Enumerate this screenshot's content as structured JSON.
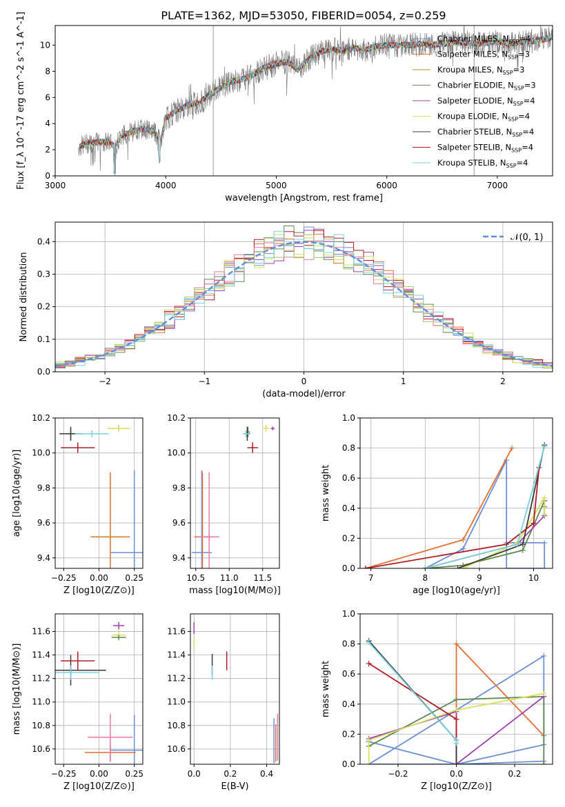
{
  "figure_title": "PLATE=1362, MJD=53050, FIBERID=0054, z=0.259",
  "colors": {
    "Chabrier MILES": "#6a8fd8",
    "Salpeter MILES": "#e36f33",
    "Kroupa MILES": "#c8882a",
    "Chabrier ELODIE": "#5b8a4f",
    "Salpeter ELODIE": "#a040b0",
    "Kroupa ELODIE": "#d6e05a",
    "Chabrier STELIB": "#3a3a3a",
    "Salpeter STELIB": "#b01c20",
    "Kroupa STELIB": "#7ad0dc",
    "data": "#7f7f7f",
    "normal": "#5b8fd8",
    "pink": "#e87aa8",
    "green2": "#9ec86a"
  },
  "chart_data": [
    {
      "id": "spectrum",
      "type": "line",
      "title": "PLATE=1362, MJD=53050, FIBERID=0054, z=0.259",
      "xlabel": "wavelength [Angstrom, rest frame]",
      "ylabel": "Flux [f_λ 10^-17 erg cm^-2 s^-1 A^-1]",
      "xlim": [
        3000,
        7500
      ],
      "ylim": [
        0,
        11.5
      ],
      "xticks": [
        "3000",
        "4000",
        "5000",
        "6000",
        "7000"
      ],
      "yticks": [
        "0",
        "2",
        "4",
        "6",
        "8",
        "10"
      ],
      "legend": [
        "Chabrier MILES, N_SSP=4",
        "Salpeter MILES, N_SSP=3",
        "Kroupa MILES, N_SSP=3",
        "Chabrier ELODIE, N_SSP=3",
        "Salpeter ELODIE, N_SSP=4",
        "Kroupa ELODIE, N_SSP=4",
        "Chabrier STELIB, N_SSP=4",
        "Salpeter STELIB, N_SSP=4",
        "Kroupa STELIB, N_SSP=4"
      ],
      "legend_placement": "upper right",
      "grid": false,
      "continuum": [
        [
          3210,
          2.2
        ],
        [
          3300,
          2.5
        ],
        [
          3400,
          2.6
        ],
        [
          3500,
          2.6
        ],
        [
          3540,
          2.2
        ],
        [
          3600,
          3.1
        ],
        [
          3700,
          3.4
        ],
        [
          3800,
          3.6
        ],
        [
          3900,
          3.4
        ],
        [
          3950,
          2.6
        ],
        [
          4000,
          4.4
        ],
        [
          4100,
          5.0
        ],
        [
          4200,
          5.4
        ],
        [
          4300,
          5.6
        ],
        [
          4400,
          6.2
        ],
        [
          4500,
          6.8
        ],
        [
          4600,
          7.2
        ],
        [
          4700,
          7.4
        ],
        [
          4800,
          7.8
        ],
        [
          4900,
          8.3
        ],
        [
          5000,
          8.6
        ],
        [
          5100,
          8.7
        ],
        [
          5200,
          8.1
        ],
        [
          5300,
          9.0
        ],
        [
          5400,
          9.5
        ],
        [
          5500,
          9.7
        ],
        [
          5600,
          9.6
        ],
        [
          5700,
          9.8
        ],
        [
          5800,
          9.6
        ],
        [
          5900,
          9.9
        ],
        [
          6000,
          10.0
        ],
        [
          6100,
          10.0
        ],
        [
          6200,
          10.0
        ],
        [
          6300,
          10.1
        ],
        [
          6400,
          10.0
        ],
        [
          6500,
          10.1
        ],
        [
          6600,
          10.2
        ],
        [
          6700,
          10.2
        ],
        [
          6800,
          10.1
        ],
        [
          6900,
          10.2
        ],
        [
          7000,
          10.3
        ],
        [
          7100,
          10.1
        ],
        [
          7200,
          10.2
        ],
        [
          7300,
          10.3
        ],
        [
          7400,
          10.4
        ],
        [
          7500,
          10.6
        ]
      ]
    },
    {
      "id": "residuals",
      "type": "histogram",
      "xlabel": "(data-model)/error",
      "ylabel": "Normed distribution",
      "xlim": [
        -2.5,
        2.5
      ],
      "ylim": [
        0,
        0.46
      ],
      "xticks": [
        "−2",
        "−1",
        "0",
        "1",
        "2"
      ],
      "yticks": [
        "0.0",
        "0.1",
        "0.2",
        "0.3",
        "0.4"
      ],
      "grid": true,
      "legend": [
        "𝒩(0, 1)"
      ],
      "legend_placement": "upper right",
      "bins": [
        -2.5,
        -2.4,
        -2.3,
        -2.2,
        -2.1,
        -2.0,
        -1.9,
        -1.8,
        -1.7,
        -1.6,
        -1.5,
        -1.4,
        -1.3,
        -1.2,
        -1.1,
        -1.0,
        -0.9,
        -0.8,
        -0.7,
        -0.6,
        -0.5,
        -0.4,
        -0.3,
        -0.2,
        -0.1,
        0.0,
        0.1,
        0.2,
        0.3,
        0.4,
        0.5,
        0.6,
        0.7,
        0.8,
        0.9,
        1.0,
        1.1,
        1.2,
        1.3,
        1.4,
        1.5,
        1.6,
        1.7,
        1.8,
        1.9,
        2.0,
        2.1,
        2.2,
        2.3,
        2.4,
        2.5
      ],
      "normal_curve": {
        "mean": 0,
        "sigma": 1
      }
    },
    {
      "id": "age-Z",
      "type": "scatter",
      "xlabel": "Z [log10(Z/Z⊙)]",
      "ylabel": "age [log10(age/yr)]",
      "xlim": [
        -0.31,
        0.31
      ],
      "ylim": [
        9.34,
        10.2
      ],
      "xticks": [
        "−0.25",
        "0.00",
        "0.25"
      ],
      "yticks": [
        "9.4",
        "9.6",
        "9.8",
        "10.0",
        "10.2"
      ],
      "grid": true,
      "points": [
        {
          "series": "Chabrier MILES",
          "x": 0.25,
          "y": 9.43,
          "xe": 0.17,
          "ye": 0.47
        },
        {
          "series": "Salpeter MILES",
          "x": 0.08,
          "y": 9.52,
          "xe": 0.14,
          "ye": 0.37
        },
        {
          "series": "Kroupa MILES",
          "x": 0.08,
          "y": 9.52,
          "xe": 0.1,
          "ye": 0.02
        },
        {
          "series": "Chabrier ELODIE",
          "x": -0.2,
          "y": 10.11,
          "xe": 0.03,
          "ye": 0.03
        },
        {
          "series": "Salpeter ELODIE",
          "x": 0.14,
          "y": 10.14,
          "xe": 0.04,
          "ye": 0.01
        },
        {
          "series": "Kroupa ELODIE",
          "x": 0.14,
          "y": 10.14,
          "xe": 0.08,
          "ye": 0.02
        },
        {
          "series": "Chabrier STELIB",
          "x": -0.2,
          "y": 10.11,
          "xe": 0.08,
          "ye": 0.04
        },
        {
          "series": "Salpeter STELIB",
          "x": -0.15,
          "y": 10.03,
          "xe": 0.12,
          "ye": 0.03
        },
        {
          "series": "Kroupa STELIB",
          "x": -0.05,
          "y": 10.11,
          "xe": 0.12,
          "ye": 0.02
        }
      ]
    },
    {
      "id": "age-mass",
      "type": "scatter",
      "xlabel": "mass [log10(M/M⊙)]",
      "ylabel": "",
      "xlim": [
        10.42,
        11.75
      ],
      "ylim": [
        9.34,
        10.2
      ],
      "xticks": [
        "10.5",
        "11.0",
        "11.5"
      ],
      "yticks": [
        "9.4",
        "9.6",
        "9.8",
        "10.0",
        "10.2"
      ],
      "grid": true,
      "points": [
        {
          "series": "Chabrier MILES",
          "x": 10.59,
          "y": 9.43,
          "xe": 0.15,
          "ye": 0.47
        },
        {
          "series": "Salpeter MILES",
          "x": 10.6,
          "y": 9.52,
          "xe": 0.12,
          "ye": 0.37
        },
        {
          "series": "Kroupa MILES",
          "x": 10.7,
          "y": 9.52,
          "xe": 0.06,
          "ye": 0.02
        },
        {
          "series": "Chabrier ELODIE",
          "x": 11.28,
          "y": 10.12,
          "xe": 0.03,
          "ye": 0.03
        },
        {
          "series": "Salpeter ELODIE",
          "x": 11.65,
          "y": 10.14,
          "xe": 0.03,
          "ye": 0.01
        },
        {
          "series": "Kroupa ELODIE",
          "x": 11.55,
          "y": 10.14,
          "xe": 0.05,
          "ye": 0.02
        },
        {
          "series": "Chabrier STELIB",
          "x": 11.27,
          "y": 10.11,
          "xe": 0.04,
          "ye": 0.04
        },
        {
          "series": "Salpeter STELIB",
          "x": 11.35,
          "y": 10.03,
          "xe": 0.08,
          "ye": 0.03
        },
        {
          "series": "Kroupa STELIB",
          "x": 11.25,
          "y": 10.11,
          "xe": 0.05,
          "ye": 0.02
        },
        {
          "series": "pink",
          "x": 10.7,
          "y": 9.52,
          "xe": 0.15,
          "ye": 0.37
        }
      ]
    },
    {
      "id": "mass-weight-age",
      "type": "line",
      "xlabel": "age [log10(age/yr)]",
      "ylabel": "mass weight",
      "xlim": [
        6.8,
        10.35
      ],
      "ylim": [
        0,
        1.0
      ],
      "xticks": [
        "7",
        "8",
        "9",
        "10"
      ],
      "yticks": [
        "0.0",
        "0.2",
        "0.4",
        "0.6",
        "0.8",
        "1.0"
      ],
      "grid": true,
      "series": [
        {
          "name": "Chabrier MILES",
          "x": [
            8.0,
            8.7,
            9.5,
            9.5,
            10.2,
            10.2,
            9.5
          ],
          "y": [
            0.0,
            0.13,
            0.72,
            0.0,
            0.0,
            0.17,
            0.17
          ]
        },
        {
          "name": "Salpeter MILES",
          "x": [
            6.9,
            8.7,
            9.6
          ],
          "y": [
            0.0,
            0.19,
            0.8
          ]
        },
        {
          "name": "Chabrier ELODIE",
          "x": [
            8.0,
            8.7,
            9.8,
            10.2,
            10.2
          ],
          "y": [
            0.0,
            0.02,
            0.12,
            0.45,
            0.41
          ]
        },
        {
          "name": "Salpeter ELODIE",
          "x": [
            8.0,
            9.7,
            10.2,
            10.2
          ],
          "y": [
            0.0,
            0.16,
            0.35,
            0.45
          ]
        },
        {
          "name": "Kroupa ELODIE",
          "x": [
            8.7,
            9.7,
            10.2,
            10.2
          ],
          "y": [
            0.0,
            0.17,
            0.47,
            0.36
          ]
        },
        {
          "name": "Chabrier STELIB",
          "x": [
            8.6,
            9.8,
            10.2
          ],
          "y": [
            0.0,
            0.16,
            0.82
          ]
        },
        {
          "name": "Salpeter STELIB",
          "x": [
            6.9,
            9.5,
            10.0,
            10.1
          ],
          "y": [
            0.0,
            0.16,
            0.3,
            0.67
          ]
        },
        {
          "name": "Kroupa STELIB",
          "x": [
            8.0,
            9.7,
            10.2
          ],
          "y": [
            0.0,
            0.16,
            0.81
          ]
        }
      ]
    },
    {
      "id": "mass-Z",
      "type": "scatter",
      "xlabel": "Z [log10(Z/Z⊙)]",
      "ylabel": "mass [log10(M/M⊙)]",
      "xlim": [
        -0.31,
        0.31
      ],
      "ylim": [
        10.47,
        11.75
      ],
      "xticks": [
        "−0.25",
        "0.00",
        "0.25"
      ],
      "yticks": [
        "10.6",
        "10.8",
        "11.0",
        "11.2",
        "11.4",
        "11.6"
      ],
      "grid": true,
      "points": [
        {
          "series": "Chabrier MILES",
          "x": 0.25,
          "y": 10.59,
          "xe": 0.17,
          "ye": 0.3
        },
        {
          "series": "Salpeter MILES",
          "x": 0.08,
          "y": 10.57,
          "xe": 0.18,
          "ye": 0.08
        },
        {
          "series": "pink",
          "x": 0.08,
          "y": 10.7,
          "xe": 0.16,
          "ye": 0.2
        },
        {
          "series": "Salpeter ELODIE",
          "x": 0.14,
          "y": 11.65,
          "xe": 0.04,
          "ye": 0.03
        },
        {
          "series": "Kroupa ELODIE",
          "x": 0.14,
          "y": 11.57,
          "xe": 0.05,
          "ye": 0.05
        },
        {
          "series": "Chabrier ELODIE",
          "x": 0.14,
          "y": 11.55,
          "xe": 0.05,
          "ye": 0.02
        },
        {
          "series": "Chabrier STELIB",
          "x": -0.2,
          "y": 11.27,
          "xe": 0.25,
          "ye": 0.13
        },
        {
          "series": "Salpeter STELIB",
          "x": -0.15,
          "y": 11.35,
          "xe": 0.12,
          "ye": 0.08
        },
        {
          "series": "Kroupa STELIB",
          "x": -0.2,
          "y": 11.25,
          "xe": 0.2,
          "ye": 0.06
        }
      ]
    },
    {
      "id": "mass-EBV",
      "type": "scatter",
      "xlabel": "E(B-V)",
      "ylabel": "",
      "xlim": [
        -0.02,
        0.47
      ],
      "ylim": [
        10.47,
        11.75
      ],
      "xticks": [
        "0.0",
        "0.2",
        "0.4"
      ],
      "yticks": [
        "10.6",
        "10.8",
        "11.0",
        "11.2",
        "11.4",
        "11.6"
      ],
      "grid": true,
      "points": [
        {
          "series": "Chabrier MILES",
          "x": 0.44,
          "y": 10.67,
          "xe": 0,
          "ye": 0.19
        },
        {
          "series": "Salpeter MILES",
          "x": 0.45,
          "y": 10.65,
          "xe": 0,
          "ye": 0.16
        },
        {
          "series": "pink",
          "x": 0.46,
          "y": 10.7,
          "xe": 0,
          "ye": 0.2
        },
        {
          "series": "Salpeter ELODIE",
          "x": 0.0,
          "y": 11.63,
          "xe": 0,
          "ye": 0.05
        },
        {
          "series": "Kroupa ELODIE",
          "x": 0.0,
          "y": 11.5,
          "xe": 0,
          "ye": 0.05
        },
        {
          "series": "Chabrier STELIB",
          "x": 0.1,
          "y": 11.32,
          "xe": 0,
          "ye": 0.09
        },
        {
          "series": "Salpeter STELIB",
          "x": 0.18,
          "y": 11.35,
          "xe": 0,
          "ye": 0.08
        },
        {
          "series": "Kroupa STELIB",
          "x": 0.1,
          "y": 11.25,
          "xe": 0,
          "ye": 0.06
        }
      ]
    },
    {
      "id": "mass-weight-Z",
      "type": "line",
      "xlabel": "Z [log10(Z/Z⊙)]",
      "ylabel": "mass weight",
      "xlim": [
        -0.33,
        0.33
      ],
      "ylim": [
        0,
        1.0
      ],
      "xticks": [
        "−0.2",
        "0.0",
        "0.2"
      ],
      "yticks": [
        "0.0",
        "0.2",
        "0.4",
        "0.6",
        "0.8",
        "1.0"
      ],
      "grid": true,
      "series": [
        {
          "name": "Chabrier MILES",
          "x": [
            -0.3,
            0.0,
            0.3,
            0.3,
            -0.3,
            0.0,
            0.3
          ],
          "y": [
            0.15,
            0.0,
            0.13,
            0.72,
            0.0,
            0.0,
            0.02
          ]
        },
        {
          "name": "Salpeter MILES",
          "x": [
            0.0,
            0.0,
            0.3
          ],
          "y": [
            0.0,
            0.8,
            0.19
          ]
        },
        {
          "name": "Chabrier ELODIE",
          "x": [
            -0.3,
            0.0,
            0.3,
            0.3
          ],
          "y": [
            0.12,
            0.43,
            0.45,
            0.0
          ]
        },
        {
          "name": "Salpeter ELODIE",
          "x": [
            -0.3,
            0.0,
            0.0,
            0.3
          ],
          "y": [
            0.17,
            0.35,
            0.0,
            0.45
          ]
        },
        {
          "name": "Kroupa ELODIE",
          "x": [
            -0.3,
            -0.3,
            0.0,
            0.3
          ],
          "y": [
            0.0,
            0.16,
            0.36,
            0.47
          ]
        },
        {
          "name": "Chabrier STELIB",
          "x": [
            -0.3,
            0.0,
            0.0
          ],
          "y": [
            0.82,
            0.16,
            0.0
          ]
        },
        {
          "name": "Salpeter STELIB",
          "x": [
            -0.3,
            0.0,
            0.0
          ],
          "y": [
            0.67,
            0.3,
            0.16
          ]
        },
        {
          "name": "Kroupa STELIB",
          "x": [
            -0.3,
            0.0,
            0.0
          ],
          "y": [
            0.81,
            0.16,
            0.14
          ]
        }
      ]
    }
  ]
}
